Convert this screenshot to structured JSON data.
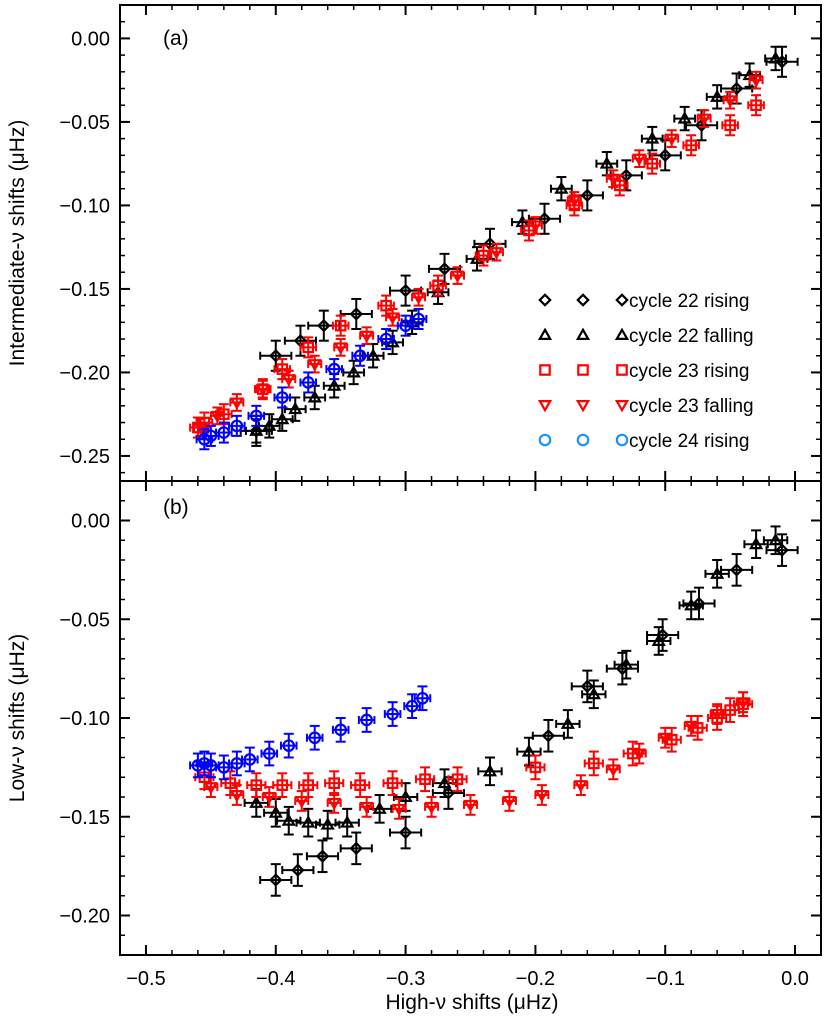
{
  "chart_data": [
    {
      "panel": "a",
      "type": "scatter",
      "panel_label": "(a)",
      "xlabel": "High-ν shifts (μHz)",
      "ylabel": "Intermediate-ν shifts (μHz)",
      "xlim": [
        -0.52,
        0.02
      ],
      "ylim": [
        -0.265,
        0.02
      ],
      "xticks": [
        -0.5,
        -0.4,
        -0.3,
        -0.2,
        -0.1,
        0.0
      ],
      "xtick_labels": [
        "−0.5",
        "−0.4",
        "−0.3",
        "−0.2",
        "−0.1",
        "0.0"
      ],
      "yticks": [
        0.0,
        -0.05,
        -0.1,
        -0.15,
        -0.2,
        -0.25
      ],
      "ytick_labels": [
        "0.00",
        "−0.05",
        "−0.10",
        "−0.15",
        "−0.20",
        "−0.25"
      ],
      "legend_position": "lower-right",
      "series": [
        {
          "name": "cycle 22 rising",
          "marker": "diamond",
          "color": "#000000",
          "x": [
            -0.415,
            -0.4,
            -0.381,
            -0.363,
            -0.338,
            -0.3,
            -0.27,
            -0.235,
            -0.193,
            -0.16,
            -0.13,
            -0.1,
            -0.072,
            -0.045,
            -0.01
          ],
          "y": [
            -0.235,
            -0.19,
            -0.181,
            -0.172,
            -0.165,
            -0.151,
            -0.138,
            -0.123,
            -0.108,
            -0.094,
            -0.082,
            -0.07,
            -0.052,
            -0.03,
            -0.014
          ],
          "xerr": 0.012,
          "yerr": 0.009
        },
        {
          "name": "cycle 22 falling",
          "marker": "triangle-up",
          "color": "#000000",
          "x": [
            -0.415,
            -0.405,
            -0.395,
            -0.385,
            -0.37,
            -0.355,
            -0.34,
            -0.325,
            -0.31,
            -0.295,
            -0.275,
            -0.245,
            -0.21,
            -0.18,
            -0.145,
            -0.11,
            -0.085,
            -0.06,
            -0.035,
            -0.015
          ],
          "y": [
            -0.235,
            -0.232,
            -0.228,
            -0.222,
            -0.215,
            -0.208,
            -0.2,
            -0.19,
            -0.182,
            -0.17,
            -0.152,
            -0.132,
            -0.11,
            -0.09,
            -0.075,
            -0.06,
            -0.048,
            -0.035,
            -0.022,
            -0.012
          ],
          "xerr": 0.008,
          "yerr": 0.007
        },
        {
          "name": "cycle 23 rising",
          "marker": "square",
          "color": "#ff0000",
          "x": [
            -0.46,
            -0.455,
            -0.44,
            -0.41,
            -0.395,
            -0.375,
            -0.35,
            -0.315,
            -0.275,
            -0.24,
            -0.205,
            -0.17,
            -0.135,
            -0.11,
            -0.08,
            -0.05,
            -0.03
          ],
          "y": [
            -0.233,
            -0.23,
            -0.225,
            -0.21,
            -0.198,
            -0.185,
            -0.172,
            -0.16,
            -0.148,
            -0.13,
            -0.115,
            -0.1,
            -0.088,
            -0.075,
            -0.064,
            -0.052,
            -0.04
          ],
          "xerr": 0.006,
          "yerr": 0.006
        },
        {
          "name": "cycle 23 falling",
          "marker": "triangle-down",
          "color": "#ff0000",
          "x": [
            -0.458,
            -0.445,
            -0.43,
            -0.41,
            -0.39,
            -0.37,
            -0.35,
            -0.33,
            -0.31,
            -0.29,
            -0.26,
            -0.23,
            -0.2,
            -0.17,
            -0.14,
            -0.12,
            -0.095,
            -0.07,
            -0.05,
            -0.03
          ],
          "y": [
            -0.233,
            -0.226,
            -0.218,
            -0.21,
            -0.204,
            -0.195,
            -0.185,
            -0.178,
            -0.167,
            -0.155,
            -0.142,
            -0.128,
            -0.112,
            -0.097,
            -0.084,
            -0.072,
            -0.06,
            -0.048,
            -0.037,
            -0.025
          ],
          "xerr": 0.005,
          "yerr": 0.005
        },
        {
          "name": "cycle 24 rising",
          "marker": "circle",
          "color": "#0000ff",
          "x": [
            -0.455,
            -0.45,
            -0.44,
            -0.43,
            -0.415,
            -0.395,
            -0.375,
            -0.355,
            -0.335,
            -0.315,
            -0.3,
            -0.29
          ],
          "y": [
            -0.24,
            -0.238,
            -0.236,
            -0.232,
            -0.226,
            -0.215,
            -0.206,
            -0.198,
            -0.19,
            -0.18,
            -0.172,
            -0.168
          ],
          "xerr": 0.006,
          "yerr": 0.006
        }
      ]
    },
    {
      "panel": "b",
      "type": "scatter",
      "panel_label": "(b)",
      "xlabel": "High-ν shifts (μHz)",
      "ylabel": "Low-ν shifts (μHz)",
      "xlim": [
        -0.52,
        0.02
      ],
      "ylim": [
        -0.22,
        0.02
      ],
      "xticks": [
        -0.5,
        -0.4,
        -0.3,
        -0.2,
        -0.1,
        0.0
      ],
      "xtick_labels": [
        "−0.5",
        "−0.4",
        "−0.3",
        "−0.2",
        "−0.1",
        "0.0"
      ],
      "yticks": [
        0.0,
        -0.05,
        -0.1,
        -0.15,
        -0.2
      ],
      "ytick_labels": [
        "0.00",
        "−0.05",
        "−0.10",
        "−0.15",
        "−0.20"
      ],
      "series": [
        {
          "name": "cycle 22 rising",
          "marker": "diamond",
          "color": "#000000",
          "x": [
            -0.4,
            -0.383,
            -0.364,
            -0.338,
            -0.3,
            -0.267,
            -0.19,
            -0.16,
            -0.133,
            -0.102,
            -0.074,
            -0.045,
            -0.01
          ],
          "y": [
            -0.182,
            -0.177,
            -0.17,
            -0.166,
            -0.158,
            -0.138,
            -0.109,
            -0.084,
            -0.075,
            -0.058,
            -0.042,
            -0.025,
            -0.015
          ],
          "xerr": 0.012,
          "yerr": 0.008
        },
        {
          "name": "cycle 22 falling",
          "marker": "triangle-up",
          "color": "#000000",
          "x": [
            -0.415,
            -0.4,
            -0.39,
            -0.375,
            -0.36,
            -0.345,
            -0.32,
            -0.3,
            -0.27,
            -0.235,
            -0.205,
            -0.175,
            -0.155,
            -0.13,
            -0.105,
            -0.08,
            -0.06,
            -0.03,
            -0.015
          ],
          "y": [
            -0.143,
            -0.148,
            -0.152,
            -0.153,
            -0.154,
            -0.153,
            -0.146,
            -0.14,
            -0.133,
            -0.127,
            -0.117,
            -0.103,
            -0.088,
            -0.073,
            -0.061,
            -0.043,
            -0.027,
            -0.012,
            -0.01
          ],
          "xerr": 0.009,
          "yerr": 0.007
        },
        {
          "name": "cycle 23 rising",
          "marker": "square",
          "color": "#ff0000",
          "x": [
            -0.455,
            -0.435,
            -0.415,
            -0.395,
            -0.375,
            -0.355,
            -0.335,
            -0.31,
            -0.285,
            -0.26,
            -0.2,
            -0.155,
            -0.125,
            -0.095,
            -0.075,
            -0.06,
            -0.05,
            -0.04
          ],
          "y": [
            -0.13,
            -0.133,
            -0.134,
            -0.134,
            -0.134,
            -0.133,
            -0.134,
            -0.133,
            -0.131,
            -0.131,
            -0.125,
            -0.123,
            -0.118,
            -0.111,
            -0.105,
            -0.1,
            -0.096,
            -0.093
          ],
          "xerr": 0.007,
          "yerr": 0.006
        },
        {
          "name": "cycle 23 falling",
          "marker": "triangle-down",
          "color": "#ff0000",
          "x": [
            -0.45,
            -0.43,
            -0.405,
            -0.38,
            -0.355,
            -0.33,
            -0.305,
            -0.28,
            -0.25,
            -0.22,
            -0.195,
            -0.165,
            -0.14,
            -0.12,
            -0.1,
            -0.08,
            -0.06,
            -0.04
          ],
          "y": [
            -0.135,
            -0.139,
            -0.14,
            -0.142,
            -0.143,
            -0.145,
            -0.146,
            -0.145,
            -0.144,
            -0.142,
            -0.139,
            -0.134,
            -0.126,
            -0.118,
            -0.11,
            -0.104,
            -0.098,
            -0.092
          ],
          "xerr": 0.005,
          "yerr": 0.005
        },
        {
          "name": "cycle 24 rising",
          "marker": "circle",
          "color": "#0000ff",
          "x": [
            -0.46,
            -0.455,
            -0.45,
            -0.44,
            -0.43,
            -0.42,
            -0.405,
            -0.39,
            -0.37,
            -0.35,
            -0.33,
            -0.31,
            -0.295,
            -0.287
          ],
          "y": [
            -0.124,
            -0.123,
            -0.124,
            -0.125,
            -0.123,
            -0.121,
            -0.118,
            -0.114,
            -0.11,
            -0.106,
            -0.101,
            -0.098,
            -0.094,
            -0.09
          ],
          "xerr": 0.006,
          "yerr": 0.006
        }
      ]
    }
  ]
}
